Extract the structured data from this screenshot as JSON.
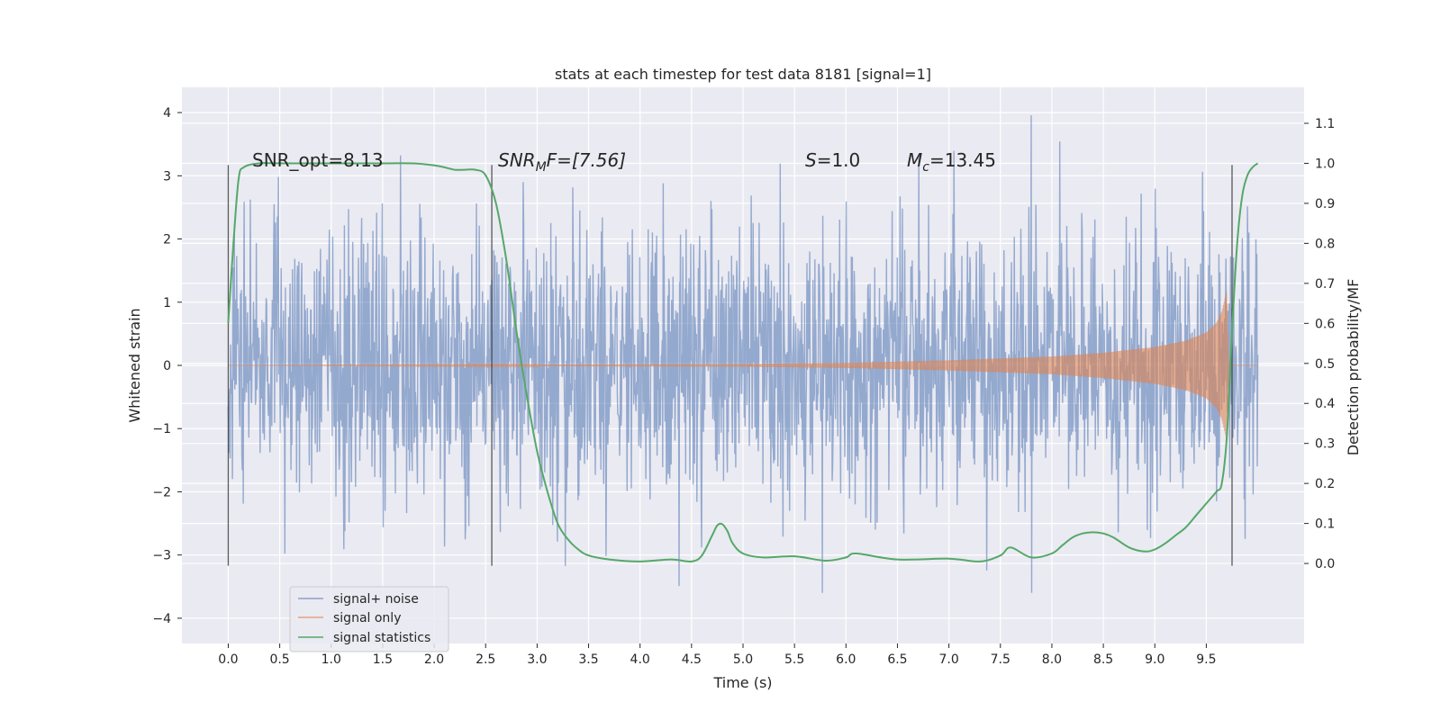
{
  "chart_data": {
    "type": "line",
    "title": "stats at each timestep for test data 8181 [signal=1]",
    "xlabel": "Time (s)",
    "ylabel_left": "Whitened strain",
    "ylabel_right": "Detection probability/MF",
    "xlim": [
      -0.45,
      10.45
    ],
    "ylim_left": [
      -4.4,
      4.4
    ],
    "ylim_right": [
      -0.2,
      1.19
    ],
    "xticks": [
      0.0,
      0.5,
      1.0,
      1.5,
      2.0,
      2.5,
      3.0,
      3.5,
      4.0,
      4.5,
      5.0,
      5.5,
      6.0,
      6.5,
      7.0,
      7.5,
      8.0,
      8.5,
      9.0,
      9.5
    ],
    "xtick_labels": [
      "0.0",
      "0.5",
      "1.0",
      "1.5",
      "2.0",
      "2.5",
      "3.0",
      "3.5",
      "4.0",
      "4.5",
      "5.0",
      "5.5",
      "6.0",
      "6.5",
      "7.0",
      "7.5",
      "8.0",
      "8.5",
      "9.0",
      "9.5"
    ],
    "yticks_left": [
      -4,
      -3,
      -2,
      -1,
      0,
      1,
      2,
      3,
      4
    ],
    "ytick_labels_left": [
      "−4",
      "−3",
      "−2",
      "−1",
      "0",
      "1",
      "2",
      "3",
      "4"
    ],
    "yticks_right": [
      0.0,
      0.1,
      0.2,
      0.3,
      0.4,
      0.5,
      0.6,
      0.7,
      0.8,
      0.9,
      1.0,
      1.1
    ],
    "ytick_labels_right": [
      "0.0",
      "0.1",
      "0.2",
      "0.3",
      "0.4",
      "0.5",
      "0.6",
      "0.7",
      "0.8",
      "0.9",
      "1.0",
      "1.1"
    ],
    "grid": true,
    "legend_position": "lower-left",
    "series": [
      {
        "name": "signal+ noise",
        "color": "#4c72b0",
        "axis": "left",
        "x_range": [
          0.0,
          10.0
        ],
        "approx_envelope": [
          -3.6,
          4.05
        ]
      },
      {
        "name": "signal only",
        "color": "#dd8452",
        "axis": "left",
        "x_range": [
          0.0,
          10.0
        ],
        "envelope_x": [
          0.0,
          5.0,
          6.0,
          7.0,
          8.0,
          8.5,
          9.0,
          9.3,
          9.5,
          9.6,
          9.65,
          9.7,
          9.72
        ],
        "envelope_amp": [
          0.0,
          0.02,
          0.04,
          0.08,
          0.14,
          0.2,
          0.29,
          0.39,
          0.52,
          0.68,
          0.85,
          1.2,
          0.0
        ]
      },
      {
        "name": "signal statistics",
        "color": "#55a868",
        "axis": "right",
        "x": [
          0.0,
          0.05,
          0.1,
          0.15,
          0.3,
          0.5,
          1.0,
          1.5,
          1.8,
          2.0,
          2.1,
          2.2,
          2.3,
          2.4,
          2.5,
          2.6,
          2.7,
          2.8,
          2.9,
          3.0,
          3.1,
          3.2,
          3.3,
          3.4,
          3.5,
          3.7,
          4.0,
          4.3,
          4.5,
          4.6,
          4.7,
          4.75,
          4.8,
          4.85,
          4.9,
          5.0,
          5.2,
          5.5,
          5.8,
          6.0,
          6.1,
          6.5,
          7.0,
          7.3,
          7.5,
          7.6,
          7.8,
          8.0,
          8.1,
          8.2,
          8.3,
          8.4,
          8.5,
          8.6,
          8.75,
          8.9,
          9.0,
          9.1,
          9.2,
          9.3,
          9.4,
          9.5,
          9.6,
          9.65,
          9.7,
          9.75,
          9.8,
          9.85,
          9.9,
          9.95,
          10.0
        ],
        "y": [
          0.6,
          0.8,
          0.96,
          0.99,
          1.0,
          1.0,
          1.0,
          1.0,
          1.0,
          0.995,
          0.99,
          0.984,
          0.984,
          0.984,
          0.97,
          0.9,
          0.76,
          0.58,
          0.42,
          0.28,
          0.18,
          0.1,
          0.06,
          0.035,
          0.02,
          0.01,
          0.005,
          0.01,
          0.005,
          0.02,
          0.07,
          0.095,
          0.098,
          0.08,
          0.05,
          0.025,
          0.015,
          0.018,
          0.007,
          0.015,
          0.025,
          0.01,
          0.012,
          0.005,
          0.02,
          0.04,
          0.015,
          0.025,
          0.045,
          0.065,
          0.075,
          0.078,
          0.075,
          0.065,
          0.04,
          0.03,
          0.035,
          0.05,
          0.07,
          0.09,
          0.12,
          0.15,
          0.18,
          0.2,
          0.32,
          0.58,
          0.8,
          0.92,
          0.97,
          0.99,
          1.0
        ]
      }
    ],
    "vertical_lines": [
      {
        "x": 0.0,
        "y_range": [
          -3.17,
          3.17
        ]
      },
      {
        "x": 2.56,
        "y_range": [
          -3.17,
          3.17
        ]
      },
      {
        "x": 9.75,
        "y_range": [
          -3.17,
          3.17
        ]
      }
    ],
    "annotations": {
      "snr_opt": "SNR_opt=8.13",
      "snr_mf_sym": "SNR",
      "snr_mf_sub": "M",
      "snr_mf_rest": "F=[7.56]",
      "s_sym": "S",
      "s_rest": "=1.0",
      "mc_sym": "M",
      "mc_sub": "c",
      "mc_rest": "=13.45"
    }
  }
}
